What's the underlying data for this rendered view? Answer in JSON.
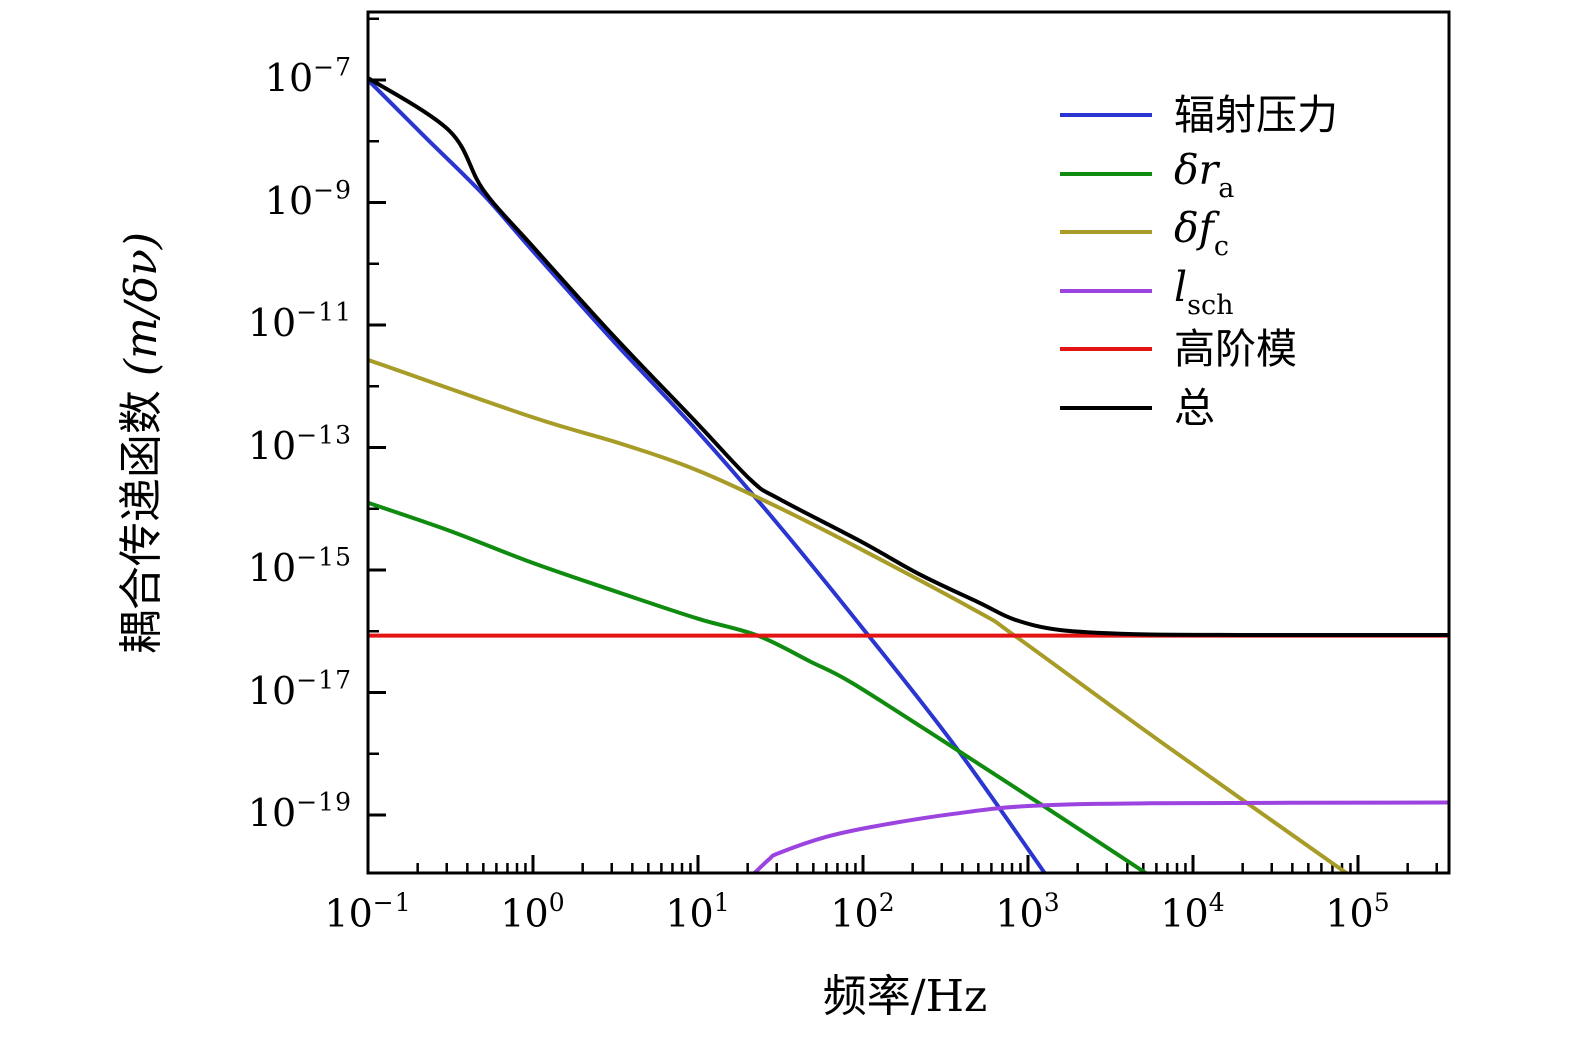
{
  "figure": {
    "background": "#ffffff",
    "axis_color": "#000000"
  },
  "chart_data": {
    "type": "line",
    "title": "",
    "xlabel": "频率/Hz",
    "ylabel": "耦合传递函数 (m/δν)",
    "ylabel_cjk": "耦合传递函数 ",
    "ylabel_math": "(m/δν)",
    "x_scale": "log",
    "y_scale": "log",
    "xlim": [
      0.1,
      350000
    ],
    "ylim": [
      1.1e-20,
      1.3e-06
    ],
    "x_tick_exponents": [
      -1,
      0,
      1,
      2,
      3,
      4,
      5
    ],
    "y_tick_exponents": [
      -7,
      -9,
      -11,
      -13,
      -15,
      -17,
      -19
    ],
    "y_minor_exponents": [
      -6,
      -8,
      -10,
      -12,
      -14,
      -16,
      -18
    ],
    "grid": false,
    "legend_position": "upper right",
    "series": [
      {
        "name": "辐射压力",
        "sub": "",
        "math": false,
        "color": "#2b35d0",
        "points": [
          [
            0.1,
            1e-07
          ],
          [
            0.22,
            1.2e-08
          ],
          [
            0.5,
            1.35e-09
          ],
          [
            1.0,
            1.6e-10
          ],
          [
            3.1,
            5.3e-12
          ],
          [
            10,
            1.8e-13
          ],
          [
            31,
            5.3e-15
          ],
          [
            100,
            1.1e-16
          ],
          [
            360,
            1.35e-18
          ],
          [
            1320,
            9.5e-21
          ]
        ]
      },
      {
        "name": "δr",
        "sub": "a",
        "math": true,
        "color": "#0f8b0f",
        "points": [
          [
            0.1,
            1.25e-14
          ],
          [
            0.31,
            4.4e-15
          ],
          [
            1.0,
            1.3e-15
          ],
          [
            3.4,
            4.2e-16
          ],
          [
            10,
            1.6e-16
          ],
          [
            23,
            8.5e-17
          ],
          [
            48,
            3.2e-17
          ],
          [
            87,
            1.4e-17
          ],
          [
            340,
            1.35e-18
          ],
          [
            1360,
            1.2e-19
          ],
          [
            5700,
            9.5e-21
          ]
        ]
      },
      {
        "name": "δf",
        "sub": "c",
        "math": true,
        "color": "#a89c28",
        "points": [
          [
            0.1,
            2.7e-12
          ],
          [
            1.0,
            3.1e-13
          ],
          [
            3.4,
            1.16e-13
          ],
          [
            10,
            4.2e-14
          ],
          [
            31,
            1.04e-14
          ],
          [
            100,
            2.1e-15
          ],
          [
            510,
            2e-16
          ],
          [
            830,
            8.5e-17
          ],
          [
            6300,
            1.6e-18
          ],
          [
            93000,
            9.5e-21
          ]
        ]
      },
      {
        "name": "l",
        "sub": "sch",
        "math": true,
        "color": "#9c44e0",
        "points": [
          [
            21,
            1e-20
          ],
          [
            27,
            1.9e-20
          ],
          [
            31,
            2.4e-20
          ],
          [
            60,
            4.4e-20
          ],
          [
            120,
            6.6e-20
          ],
          [
            360,
            1.05e-19
          ],
          [
            1000,
            1.4e-19
          ],
          [
            5500,
            1.55e-19
          ],
          [
            350000,
            1.6e-19
          ]
        ]
      },
      {
        "name": "高阶模",
        "sub": "",
        "math": false,
        "color": "#e41414",
        "points": [
          [
            0.1,
            8.5e-17
          ],
          [
            350000,
            8.5e-17
          ]
        ]
      },
      {
        "name": "总",
        "sub": "",
        "math": false,
        "color": "#000000",
        "points": [
          [
            0.1,
            1.08e-07
          ],
          [
            0.31,
            1.5e-08
          ],
          [
            0.5,
            1.6e-09
          ],
          [
            1.0,
            1.9e-10
          ],
          [
            3.1,
            6.5e-12
          ],
          [
            10,
            2.4e-13
          ],
          [
            21,
            2.9e-14
          ],
          [
            31,
            1.45e-14
          ],
          [
            100,
            2.8e-15
          ],
          [
            220,
            8.5e-16
          ],
          [
            510,
            2.9e-16
          ],
          [
            830,
            1.55e-16
          ],
          [
            1560,
            1.05e-16
          ],
          [
            4300,
            9e-17
          ],
          [
            22000,
            8.7e-17
          ],
          [
            350000,
            8.7e-17
          ]
        ]
      }
    ]
  }
}
